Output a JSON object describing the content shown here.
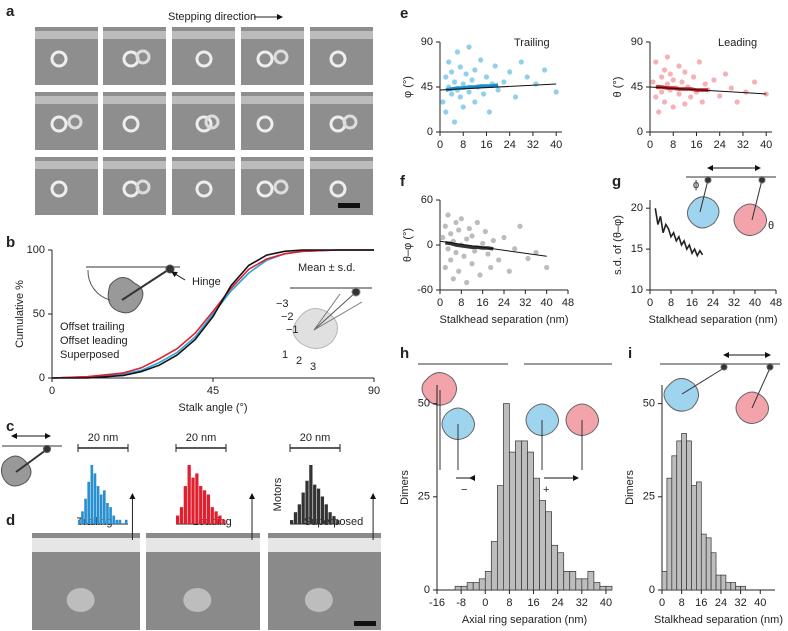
{
  "micrographs": {
    "a": {
      "panel": "a",
      "caption": "Stepping direction"
    },
    "d": {
      "panel": "d",
      "labels": [
        "Trailing",
        "Leading",
        "Superposed"
      ]
    }
  },
  "chart_data": [
    {
      "panel": "b",
      "type": "line",
      "x": [
        0,
        10,
        20,
        25,
        30,
        35,
        40,
        45,
        50,
        55,
        60,
        65,
        70,
        80,
        90
      ],
      "series": [
        {
          "name": "Offset trailing",
          "color": "#29a3dc",
          "values": [
            0,
            1,
            3,
            6,
            12,
            20,
            32,
            50,
            68,
            82,
            92,
            97,
            99,
            100,
            100
          ]
        },
        {
          "name": "Offset leading",
          "color": "#e0202e",
          "values": [
            0,
            1,
            4,
            8,
            15,
            23,
            35,
            52,
            70,
            85,
            93,
            97,
            99,
            100,
            100
          ]
        },
        {
          "name": "Superposed",
          "color": "#111111",
          "values": [
            0,
            0,
            2,
            5,
            10,
            18,
            30,
            48,
            72,
            88,
            96,
            99,
            100,
            100,
            100
          ]
        }
      ],
      "xlim": [
        0,
        90
      ],
      "xticks": [
        0,
        45,
        90
      ],
      "ylim": [
        0,
        100
      ],
      "yticks": [
        0,
        50,
        100
      ],
      "x_label": "Stalk angle (°)",
      "y_label": "Cumulative %",
      "annotations": [
        "Hinge",
        "Mean ± s.d.",
        "−3",
        "−2",
        "−1",
        "1",
        "2",
        "3"
      ]
    },
    {
      "panel": "c",
      "type": "histogram",
      "color": "#2a8fd0",
      "scale_label": "20 nm",
      "values": [
        1,
        3,
        6,
        10,
        14,
        12,
        9,
        7,
        8,
        5,
        4,
        2,
        1,
        1,
        0,
        1
      ]
    },
    {
      "type": "histogram",
      "color": "#e0202e",
      "scale_label": "20 nm",
      "values": [
        2,
        4,
        9,
        14,
        11,
        12,
        9,
        8,
        7,
        4,
        3,
        2,
        1
      ]
    },
    {
      "type": "histogram",
      "color": "#333333",
      "scale_label": "20 nm",
      "y_label": "Motors",
      "values": [
        1,
        3,
        5,
        8,
        11,
        15,
        10,
        9,
        7,
        5,
        3,
        2,
        1
      ]
    },
    {
      "panel": "e",
      "type": "scatter",
      "xlim": [
        0,
        42
      ],
      "xticks": [
        0,
        8,
        16,
        24,
        32,
        40
      ],
      "ylim": [
        0,
        90
      ],
      "yticks": [
        0,
        45,
        90
      ],
      "y_label": "φ (°)",
      "series": [
        {
          "name": "Trailing",
          "color": "#7ec8e8",
          "x": [
            1,
            2,
            2,
            3,
            3,
            4,
            4,
            5,
            5,
            6,
            6,
            7,
            7,
            8,
            8,
            9,
            10,
            10,
            11,
            12,
            12,
            13,
            14,
            15,
            16,
            17,
            18,
            19,
            20,
            22,
            24,
            26,
            28,
            30,
            33,
            36,
            40
          ],
          "values": [
            30,
            55,
            20,
            45,
            70,
            38,
            60,
            50,
            10,
            42,
            80,
            35,
            65,
            48,
            25,
            58,
            40,
            85,
            52,
            30,
            62,
            45,
            72,
            38,
            55,
            20,
            48,
            66,
            42,
            50,
            60,
            35,
            70,
            55,
            48,
            62,
            40
          ]
        }
      ],
      "legend_color": "#29a3dc",
      "mean": {
        "color": "#1a8fd0",
        "x": [
          2,
          4,
          6,
          8,
          10,
          12,
          14,
          16,
          18,
          20
        ],
        "values": [
          42,
          43,
          44,
          44,
          45,
          45,
          46,
          46,
          46,
          47
        ]
      },
      "fit": {
        "color": "#111111",
        "x": [
          0,
          40
        ],
        "values": [
          42,
          48
        ]
      }
    },
    {
      "type": "scatter",
      "xlim": [
        0,
        42
      ],
      "xticks": [
        0,
        8,
        16,
        24,
        32,
        40
      ],
      "ylim": [
        0,
        90
      ],
      "yticks": [
        0,
        45,
        90
      ],
      "y_label": "θ (°)",
      "series": [
        {
          "name": "Leading",
          "color": "#f4a3a8",
          "x": [
            1,
            2,
            2,
            3,
            3,
            4,
            4,
            5,
            5,
            6,
            6,
            7,
            7,
            8,
            8,
            9,
            10,
            10,
            11,
            12,
            12,
            13,
            14,
            15,
            16,
            17,
            18,
            19,
            20,
            22,
            24,
            26,
            28,
            30,
            33,
            36,
            40
          ],
          "values": [
            50,
            35,
            70,
            45,
            20,
            55,
            40,
            62,
            30,
            48,
            75,
            42,
            58,
            25,
            52,
            44,
            66,
            38,
            50,
            28,
            60,
            45,
            35,
            55,
            40,
            70,
            30,
            48,
            42,
            52,
            36,
            58,
            44,
            30,
            40,
            50,
            38
          ]
        }
      ],
      "legend_color": "#e0202e",
      "mean": {
        "color": "#c81a24",
        "x": [
          2,
          4,
          6,
          8,
          10,
          12,
          14,
          16,
          18,
          20
        ],
        "values": [
          45,
          45,
          44,
          44,
          43,
          43,
          43,
          42,
          42,
          42
        ]
      },
      "fit": {
        "color": "#111111",
        "x": [
          0,
          40
        ],
        "values": [
          45,
          38
        ]
      }
    },
    {
      "panel": "f",
      "type": "scatter",
      "xlim": [
        0,
        48
      ],
      "xticks": [
        0,
        8,
        16,
        24,
        32,
        40,
        48
      ],
      "ylim": [
        -60,
        60
      ],
      "yticks": [
        -60,
        0,
        60
      ],
      "y_label": "θ–φ (°)",
      "x_label": "Stalkhead separation (nm)",
      "series": [
        {
          "color": "#b0b0b0",
          "x": [
            1,
            2,
            2,
            3,
            3,
            4,
            4,
            5,
            5,
            6,
            6,
            7,
            7,
            8,
            8,
            9,
            10,
            10,
            11,
            12,
            12,
            13,
            14,
            15,
            16,
            17,
            18,
            19,
            20,
            22,
            24,
            26,
            28,
            30,
            33,
            36,
            40
          ],
          "values": [
            10,
            -30,
            25,
            -5,
            40,
            -20,
            15,
            5,
            -45,
            30,
            -10,
            20,
            -35,
            0,
            35,
            -15,
            8,
            -50,
            22,
            -25,
            12,
            -8,
            30,
            -40,
            2,
            18,
            -12,
            -30,
            6,
            -20,
            10,
            -35,
            -5,
            25,
            -18,
            -10,
            -30
          ]
        }
      ],
      "mean": {
        "color": "#333333",
        "x": [
          2,
          4,
          6,
          8,
          10,
          12,
          14,
          16,
          18,
          20
        ],
        "values": [
          3,
          2,
          0,
          -1,
          -2,
          -3,
          -3,
          -4,
          -4,
          -5
        ]
      },
      "fit": {
        "color": "#111111",
        "x": [
          0,
          40
        ],
        "values": [
          5,
          -15
        ]
      }
    },
    {
      "panel": "g",
      "type": "line",
      "xlim": [
        0,
        48
      ],
      "xticks": [
        0,
        8,
        16,
        24,
        32,
        40,
        48
      ],
      "ylim": [
        10,
        21
      ],
      "yticks": [
        10,
        15,
        20
      ],
      "y_label": "s.d. of (θ–φ)",
      "x_label": "Stalkhead separation (nm)",
      "color": "#222222",
      "x": [
        2,
        3,
        4,
        5,
        6,
        7,
        8,
        9,
        10,
        11,
        12,
        13,
        14,
        15,
        16,
        17,
        18,
        19,
        20
      ],
      "values": [
        20,
        18,
        19,
        17,
        18,
        17.5,
        16.5,
        17,
        16,
        16.5,
        15.5,
        16,
        15,
        15.5,
        14.5,
        15,
        14.2,
        14.8,
        14.3
      ],
      "annotations": [
        "ϕ",
        "θ"
      ]
    },
    {
      "panel": "h",
      "type": "histogram",
      "color": "#bdbdbd",
      "xlim": [
        -16,
        42
      ],
      "xticks": [
        -16,
        -8,
        0,
        8,
        16,
        24,
        32,
        40
      ],
      "ylim": [
        0,
        55
      ],
      "yticks": [
        0,
        25,
        50
      ],
      "y_label": "Dimers",
      "x_label": "Axial ring separation (nm)",
      "bins": [
        -12,
        -10,
        -8,
        -6,
        -4,
        -2,
        0,
        2,
        4,
        6,
        8,
        10,
        12,
        14,
        16,
        18,
        20,
        22,
        24,
        26,
        28,
        30,
        32,
        34,
        36,
        38,
        40,
        42
      ],
      "values": [
        0,
        1,
        1,
        2,
        2,
        3,
        5,
        13,
        28,
        50,
        37,
        40,
        40,
        37,
        30,
        24,
        21,
        12,
        10,
        5,
        5,
        3,
        3,
        5,
        2,
        1,
        1
      ],
      "annotations": [
        "−",
        "+"
      ]
    },
    {
      "panel": "i",
      "type": "histogram",
      "color": "#bdbdbd",
      "xlim": [
        0,
        46
      ],
      "xticks": [
        0,
        8,
        16,
        24,
        32,
        40
      ],
      "ylim": [
        0,
        55
      ],
      "yticks": [
        0,
        25,
        50
      ],
      "y_label": "Dimers",
      "x_label": "Stalkhead separation (nm)",
      "bins": [
        0,
        2,
        4,
        6,
        8,
        10,
        12,
        14,
        16,
        18,
        20,
        22,
        24,
        26,
        28,
        30,
        32,
        34
      ],
      "values": [
        5,
        30,
        36,
        40,
        42,
        40,
        28,
        29,
        15,
        14,
        10,
        4,
        4,
        2,
        2,
        1,
        1
      ]
    }
  ]
}
